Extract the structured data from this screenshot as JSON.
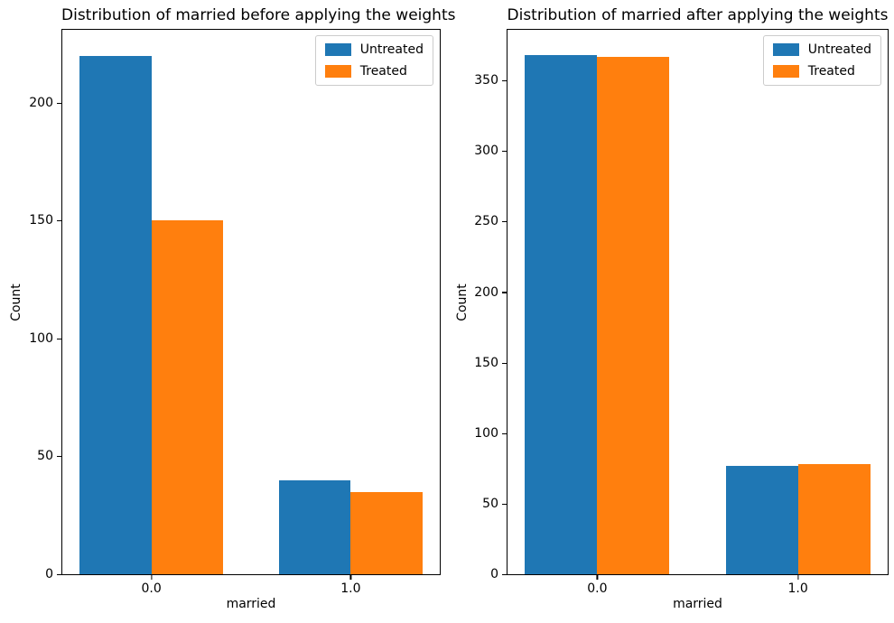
{
  "figure": {
    "background": "#ffffff",
    "text_color": "#000000",
    "spine_color": "#000000",
    "legend_border_color": "#cccccc"
  },
  "chart_data": [
    {
      "type": "bar",
      "title": "Distribution of married before applying the weights",
      "xlabel": "married",
      "ylabel": "Count",
      "categories": [
        "0.0",
        "1.0"
      ],
      "series": [
        {
          "name": "Untreated",
          "color": "#1f77b4",
          "values": [
            220,
            40
          ]
        },
        {
          "name": "Treated",
          "color": "#ff7f0e",
          "values": [
            150,
            35
          ]
        }
      ],
      "yticks": [
        0,
        50,
        100,
        150,
        200
      ],
      "ylim": [
        0,
        231
      ],
      "grid": false,
      "legend_position": "upper-right",
      "group_centers_pct": [
        23.6,
        76.4
      ],
      "bar_width_pct": 19
    },
    {
      "type": "bar",
      "title": "Distribution of married after applying the weights",
      "xlabel": "married",
      "ylabel": "Count",
      "categories": [
        "0.0",
        "1.0"
      ],
      "series": [
        {
          "name": "Untreated",
          "color": "#1f77b4",
          "values": [
            368,
            77
          ]
        },
        {
          "name": "Treated",
          "color": "#ff7f0e",
          "values": [
            367,
            78
          ]
        }
      ],
      "yticks": [
        0,
        50,
        100,
        150,
        200,
        250,
        300,
        350
      ],
      "ylim": [
        0,
        386
      ],
      "grid": false,
      "legend_position": "upper-right",
      "group_centers_pct": [
        23.6,
        76.4
      ],
      "bar_width_pct": 19
    }
  ]
}
